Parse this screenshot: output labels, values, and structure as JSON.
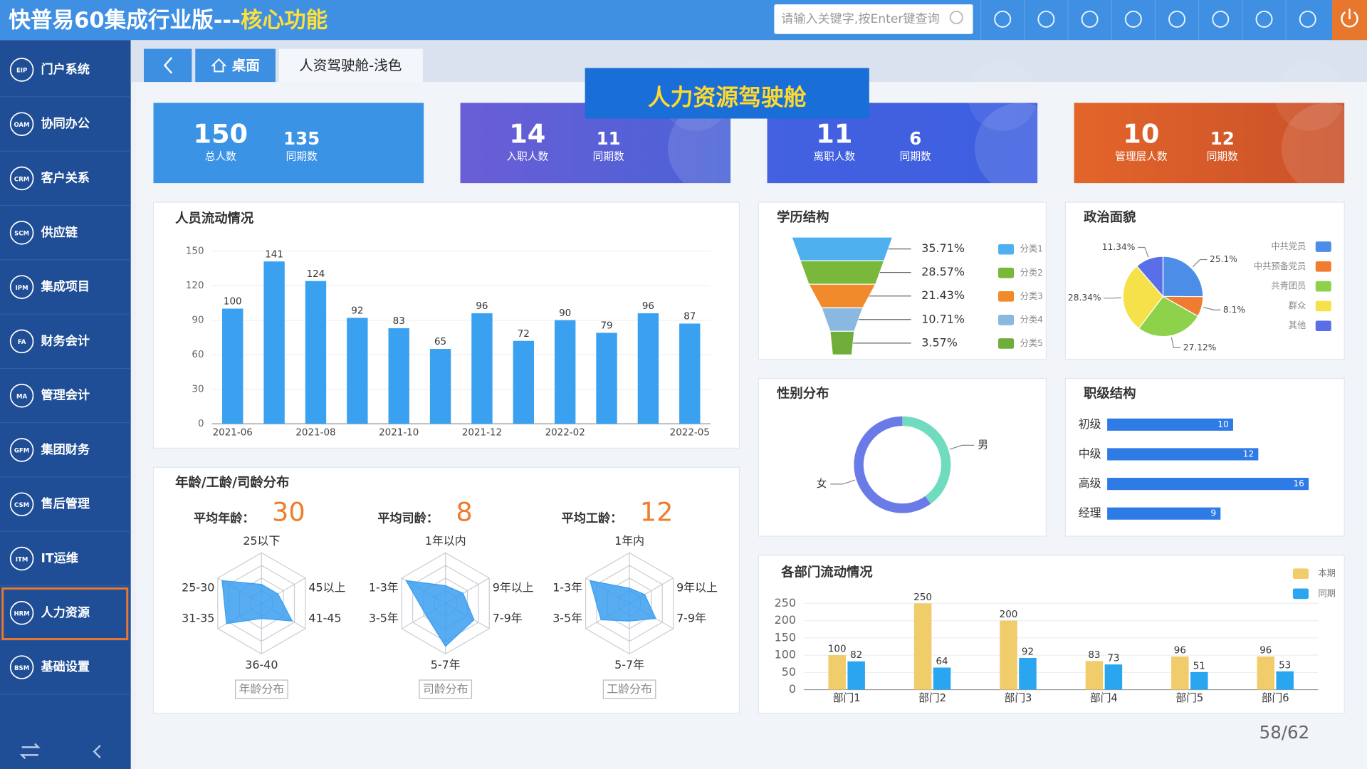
{
  "header": {
    "title": "快普易60集成行业版---",
    "highlight": "核心功能",
    "search_placeholder": "请输入关键字,按Enter键查询"
  },
  "nav": {
    "items": [
      {
        "code": "EIP",
        "label": "门户系统"
      },
      {
        "code": "OAM",
        "label": "协同办公"
      },
      {
        "code": "CRM",
        "label": "客户关系"
      },
      {
        "code": "SCM",
        "label": "供应链"
      },
      {
        "code": "IPM",
        "label": "集成项目"
      },
      {
        "code": "FA",
        "label": "财务会计"
      },
      {
        "code": "MA",
        "label": "管理会计"
      },
      {
        "code": "GFM",
        "label": "集团财务"
      },
      {
        "code": "CSM",
        "label": "售后管理"
      },
      {
        "code": "ITM",
        "label": "IT运维"
      },
      {
        "code": "HRM",
        "label": "人力资源",
        "active": true
      },
      {
        "code": "BSM",
        "label": "基础设置"
      }
    ]
  },
  "tabs": [
    "桌面",
    "人资驾驶舱-浅色"
  ],
  "banner": "人力资源驾驶舱",
  "kpis": [
    {
      "value": 150,
      "label": "总人数",
      "compare": 135,
      "compare_label": "同期数"
    },
    {
      "value": 14,
      "label": "入职人数",
      "compare": 11,
      "compare_label": "同期数"
    },
    {
      "value": 11,
      "label": "离职人数",
      "compare": 6,
      "compare_label": "同期数"
    },
    {
      "value": 10,
      "label": "管理层人数",
      "compare": 12,
      "compare_label": "同期数"
    }
  ],
  "age_panel": {
    "title": "年龄/工龄/司龄分布"
  },
  "page_number": "58/62",
  "chart_data": [
    {
      "type": "bar",
      "title": "人员流动情况",
      "categories": [
        "2021-06",
        null,
        "2021-08",
        null,
        "2021-10",
        null,
        "2021-12",
        null,
        "2022-02",
        null,
        null,
        "2022-05"
      ],
      "values": [
        100,
        141,
        124,
        92,
        83,
        65,
        96,
        72,
        90,
        79,
        96,
        87
      ],
      "color": "#3aa0f0",
      "ylim": [
        0,
        150
      ],
      "yticks": [
        0,
        30,
        60,
        90,
        120,
        150
      ],
      "grid": true
    },
    {
      "type": "funnel",
      "title": "学历结构",
      "categories": [
        "分类1",
        "分类2",
        "分类3",
        "分类4",
        "分类5"
      ],
      "values": [
        35.71,
        28.57,
        21.43,
        10.71,
        3.57
      ],
      "value_labels": [
        "35.71%",
        "28.57%",
        "21.43%",
        "10.71%",
        "3.57%"
      ],
      "colors": [
        "#4fb0f0",
        "#7ab83c",
        "#f08a2a",
        "#8ab8e0",
        "#6fae38"
      ]
    },
    {
      "type": "pie",
      "title": "政治面貌",
      "categories": [
        "中共党员",
        "中共预备党员",
        "共青团员",
        "群众",
        "其他"
      ],
      "values": [
        25.1,
        8.1,
        27.12,
        28.34,
        11.34
      ],
      "value_labels": [
        "25.1%",
        "8.1%",
        "27.12%",
        "28.34%",
        "11.34%"
      ],
      "colors": [
        "#4c8de8",
        "#f07c30",
        "#8ed14a",
        "#f7e14a",
        "#5a6ee8"
      ]
    },
    {
      "type": "donut",
      "title": "性别分布",
      "categories": [
        "男",
        "女"
      ],
      "values": [
        40,
        60
      ],
      "colors": [
        "#6fdcc0",
        "#6a7be8"
      ]
    },
    {
      "type": "hbar",
      "title": "职级结构",
      "categories": [
        "初级",
        "中级",
        "高级",
        "经理"
      ],
      "values": [
        10,
        12,
        16,
        9
      ],
      "color": "#2f7be6",
      "xlim": [
        0,
        18
      ]
    },
    {
      "type": "grouped_bar",
      "title": "各部门流动情况",
      "categories": [
        "部门1",
        "部门2",
        "部门3",
        "部门4",
        "部门5",
        "部门6"
      ],
      "series": [
        {
          "name": "本期",
          "color": "#f0cc6a",
          "values": [
            100,
            250,
            200,
            83,
            96,
            96
          ]
        },
        {
          "name": "同期",
          "color": "#2aa5f0",
          "values": [
            82,
            64,
            92,
            73,
            51,
            53
          ]
        }
      ],
      "ylim": [
        0,
        250
      ],
      "yticks": [
        0,
        50,
        100,
        150,
        200,
        250
      ],
      "grid": true
    },
    {
      "type": "radar",
      "stat_label": "平均年龄：",
      "stat_value": 30,
      "button": "年龄分布",
      "categories": [
        "25以下",
        "45以上",
        "41-45",
        "36-40",
        "31-35",
        "25-30"
      ],
      "values": [
        1.5,
        1.5,
        2.8,
        1.2,
        3.2,
        3.6
      ],
      "rlim": [
        0,
        4
      ],
      "color": "#3a9ef0"
    },
    {
      "type": "radar",
      "stat_label": "平均司龄：",
      "stat_value": 8,
      "button": "司龄分布",
      "categories": [
        "1年以内",
        "9年以上",
        "7-9年",
        "5-7年",
        "3-5年",
        "1-3年"
      ],
      "values": [
        1.4,
        1.6,
        2.6,
        3.4,
        1.8,
        3.6
      ],
      "rlim": [
        0,
        4
      ],
      "color": "#3a9ef0"
    },
    {
      "type": "radar",
      "stat_label": "平均工龄：",
      "stat_value": 12,
      "button": "工龄分布",
      "categories": [
        "1年内",
        "9年以上",
        "7-9年",
        "5-7年",
        "3-5年",
        "1-3年"
      ],
      "values": [
        1.2,
        1.4,
        2.4,
        1.4,
        2.6,
        3.6
      ],
      "rlim": [
        0,
        4
      ],
      "color": "#3a9ef0"
    }
  ]
}
